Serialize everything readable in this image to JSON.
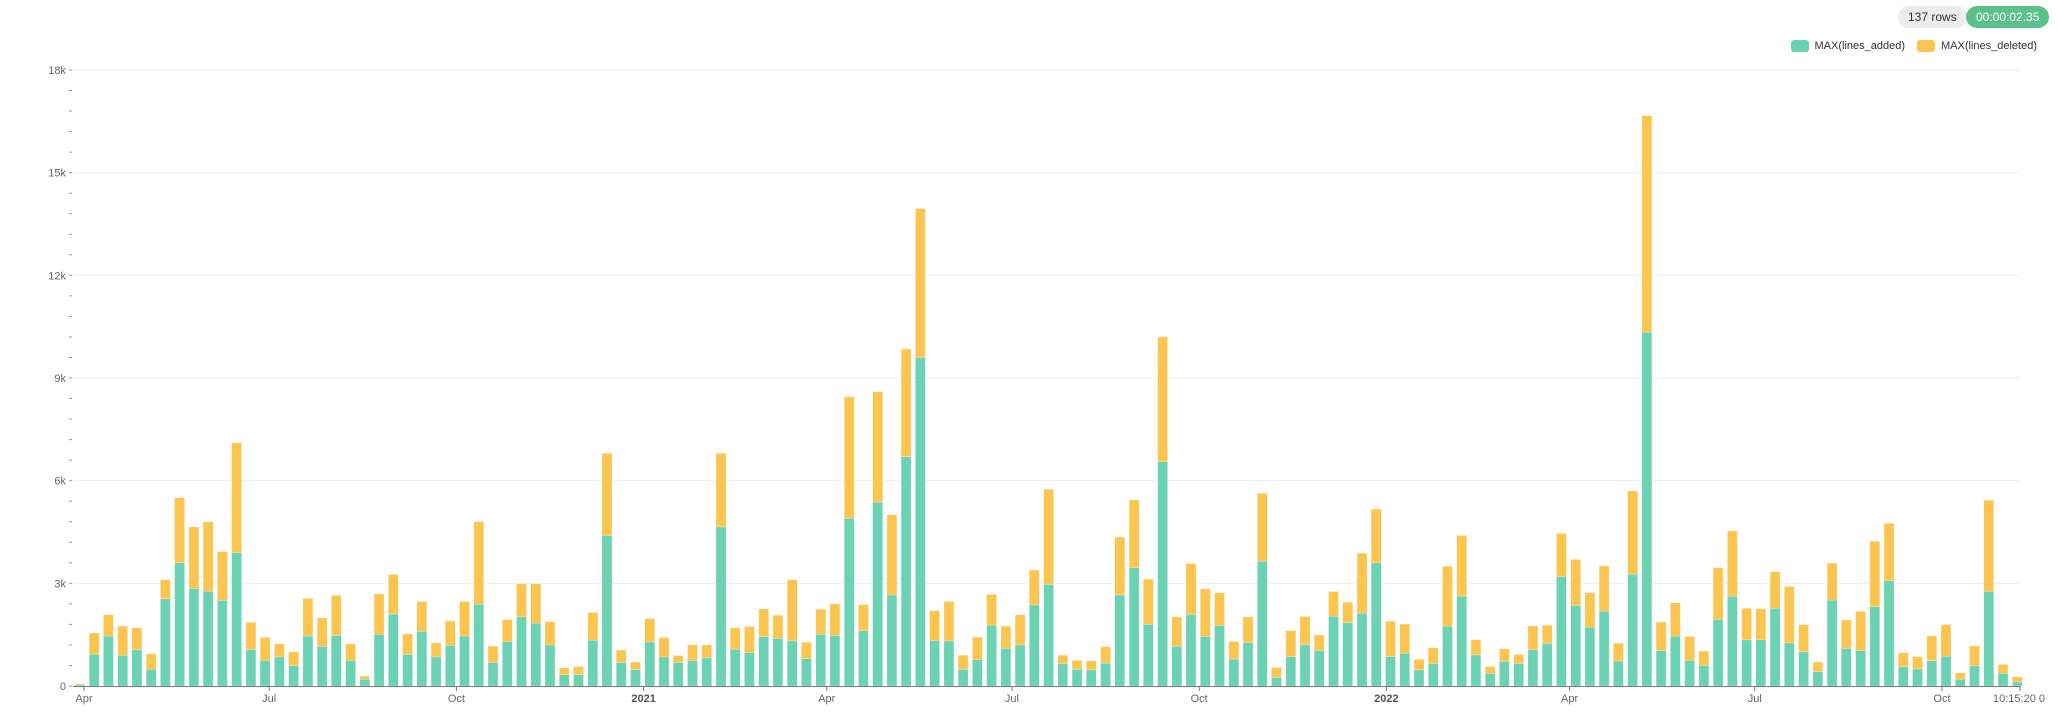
{
  "status": {
    "rows": "137 rows",
    "elapsed": "00:00:02.35",
    "elapsed_color": "#5ac189"
  },
  "chart_data": {
    "type": "bar",
    "stacked": true,
    "title": "",
    "xlabel": "",
    "ylabel": "",
    "ylim": [
      0,
      18000
    ],
    "grid": true,
    "legend_position": "top-right",
    "y_ticks": [
      {
        "value": 0,
        "label": "0"
      },
      {
        "value": 3000,
        "label": "3k"
      },
      {
        "value": 6000,
        "label": "6k"
      },
      {
        "value": 9000,
        "label": "9k"
      },
      {
        "value": 12000,
        "label": "12k"
      },
      {
        "value": 15000,
        "label": "15k"
      },
      {
        "value": 18000,
        "label": "18k"
      }
    ],
    "x_ticks": [
      {
        "date": "2020-04-01",
        "label": "Apr",
        "bold": false
      },
      {
        "date": "2020-07-01",
        "label": "Jul",
        "bold": false
      },
      {
        "date": "2020-10-01",
        "label": "Oct",
        "bold": false
      },
      {
        "date": "2021-01-01",
        "label": "2021",
        "bold": true
      },
      {
        "date": "2021-04-01",
        "label": "Apr",
        "bold": false
      },
      {
        "date": "2021-07-01",
        "label": "Jul",
        "bold": false
      },
      {
        "date": "2021-10-01",
        "label": "Oct",
        "bold": false
      },
      {
        "date": "2022-01-01",
        "label": "2022",
        "bold": true
      },
      {
        "date": "2022-04-01",
        "label": "Apr",
        "bold": false
      },
      {
        "date": "2022-07-01",
        "label": "Jul",
        "bold": false
      },
      {
        "date": "2022-10-01",
        "label": "Oct",
        "bold": false
      },
      {
        "date": "2022-11-11",
        "label": "10:15:20 0",
        "bold": false
      }
    ],
    "x": [
      "2020-03-30",
      "2020-04-06",
      "2020-04-13",
      "2020-04-20",
      "2020-04-27",
      "2020-05-04",
      "2020-05-11",
      "2020-05-18",
      "2020-05-25",
      "2020-06-01",
      "2020-06-08",
      "2020-06-15",
      "2020-06-22",
      "2020-06-29",
      "2020-07-06",
      "2020-07-13",
      "2020-07-20",
      "2020-07-27",
      "2020-08-03",
      "2020-08-10",
      "2020-08-17",
      "2020-08-24",
      "2020-08-31",
      "2020-09-07",
      "2020-09-14",
      "2020-09-21",
      "2020-09-28",
      "2020-10-05",
      "2020-10-12",
      "2020-10-19",
      "2020-10-26",
      "2020-11-02",
      "2020-11-09",
      "2020-11-16",
      "2020-11-23",
      "2020-11-30",
      "2020-12-07",
      "2020-12-14",
      "2020-12-21",
      "2020-12-28",
      "2021-01-04",
      "2021-01-11",
      "2021-01-18",
      "2021-01-25",
      "2021-02-01",
      "2021-02-08",
      "2021-02-15",
      "2021-02-22",
      "2021-03-01",
      "2021-03-08",
      "2021-03-15",
      "2021-03-22",
      "2021-03-29",
      "2021-04-05",
      "2021-04-12",
      "2021-04-19",
      "2021-04-26",
      "2021-05-03",
      "2021-05-10",
      "2021-05-17",
      "2021-05-24",
      "2021-05-31",
      "2021-06-07",
      "2021-06-14",
      "2021-06-21",
      "2021-06-28",
      "2021-07-05",
      "2021-07-12",
      "2021-07-19",
      "2021-07-26",
      "2021-08-02",
      "2021-08-09",
      "2021-08-16",
      "2021-08-23",
      "2021-08-30",
      "2021-09-06",
      "2021-09-13",
      "2021-09-20",
      "2021-09-27",
      "2021-10-04",
      "2021-10-11",
      "2021-10-18",
      "2021-10-25",
      "2021-11-01",
      "2021-11-08",
      "2021-11-15",
      "2021-11-22",
      "2021-11-29",
      "2021-12-06",
      "2021-12-13",
      "2021-12-20",
      "2021-12-27",
      "2022-01-03",
      "2022-01-10",
      "2022-01-17",
      "2022-01-24",
      "2022-01-31",
      "2022-02-07",
      "2022-02-14",
      "2022-02-21",
      "2022-02-28",
      "2022-03-07",
      "2022-03-14",
      "2022-03-21",
      "2022-03-28",
      "2022-04-04",
      "2022-04-11",
      "2022-04-18",
      "2022-04-25",
      "2022-05-02",
      "2022-05-09",
      "2022-05-16",
      "2022-05-23",
      "2022-05-30",
      "2022-06-06",
      "2022-06-13",
      "2022-06-20",
      "2022-06-27",
      "2022-07-04",
      "2022-07-11",
      "2022-07-18",
      "2022-07-25",
      "2022-08-01",
      "2022-08-08",
      "2022-08-15",
      "2022-08-22",
      "2022-08-29",
      "2022-09-05",
      "2022-09-12",
      "2022-09-19",
      "2022-09-26",
      "2022-10-03",
      "2022-10-10",
      "2022-10-17",
      "2022-10-24",
      "2022-10-31",
      "2022-11-07"
    ],
    "series": [
      {
        "name": "MAX(lines_added)",
        "color": "#6bd3b3",
        "values": [
          30,
          930,
          1460,
          900,
          1060,
          490,
          2550,
          3600,
          2850,
          2770,
          2500,
          3900,
          1070,
          750,
          850,
          590,
          1460,
          1160,
          1480,
          750,
          200,
          1510,
          2100,
          920,
          1600,
          850,
          1190,
          1460,
          2390,
          690,
          1300,
          2020,
          1840,
          1200,
          330,
          330,
          1340,
          4400,
          690,
          480,
          1290,
          850,
          690,
          750,
          820,
          4650,
          1070,
          980,
          1440,
          1390,
          1320,
          800,
          1510,
          1480,
          4900,
          1620,
          5370,
          2660,
          6700,
          9600,
          1330,
          1320,
          490,
          770,
          1780,
          1100,
          1200,
          2370,
          2970,
          660,
          490,
          470,
          670,
          2660,
          3460,
          1800,
          6550,
          1160,
          2090,
          1450,
          1770,
          790,
          1270,
          3650,
          250,
          860,
          1200,
          1040,
          2040,
          1850,
          2130,
          3600,
          860,
          960,
          470,
          660,
          1750,
          2630,
          910,
          370,
          720,
          660,
          1060,
          1250,
          3200,
          2350,
          1720,
          2190,
          730,
          3270,
          10340,
          1040,
          1460,
          750,
          600,
          1950,
          2620,
          1350,
          1350,
          2270,
          1260,
          1000,
          420,
          2510,
          1100,
          1040,
          2320,
          3080,
          560,
          500,
          740,
          870,
          200,
          590,
          2770,
          370,
          120
        ]
      },
      {
        "name": "MAX(lines_deleted)",
        "color": "#fcc550",
        "values": [
          40,
          620,
          620,
          850,
          640,
          450,
          550,
          1900,
          1800,
          2030,
          1430,
          3200,
          790,
          670,
          380,
          410,
          1100,
          830,
          1170,
          480,
          90,
          1180,
          1160,
          600,
          870,
          410,
          710,
          1010,
          2410,
          470,
          640,
          970,
          1150,
          680,
          200,
          240,
          810,
          2400,
          360,
          220,
          680,
          570,
          200,
          450,
          380,
          2150,
          630,
          760,
          810,
          680,
          1780,
          480,
          730,
          920,
          3550,
          760,
          3230,
          2340,
          3150,
          4350,
          870,
          1150,
          410,
          660,
          900,
          650,
          880,
          1020,
          2780,
          240,
          260,
          270,
          480,
          1690,
          1980,
          1320,
          3650,
          860,
          1490,
          1390,
          950,
          510,
          750,
          1980,
          290,
          760,
          830,
          450,
          720,
          600,
          1750,
          1570,
          1030,
          850,
          310,
          460,
          1750,
          1770,
          440,
          200,
          370,
          260,
          690,
          530,
          1260,
          1350,
          1010,
          1320,
          520,
          2430,
          6330,
          830,
          970,
          700,
          420,
          1510,
          1910,
          920,
          910,
          1070,
          1650,
          790,
          280,
          1080,
          830,
          1140,
          1910,
          1670,
          410,
          360,
          720,
          920,
          190,
          580,
          2660,
          260,
          150
        ]
      }
    ]
  }
}
